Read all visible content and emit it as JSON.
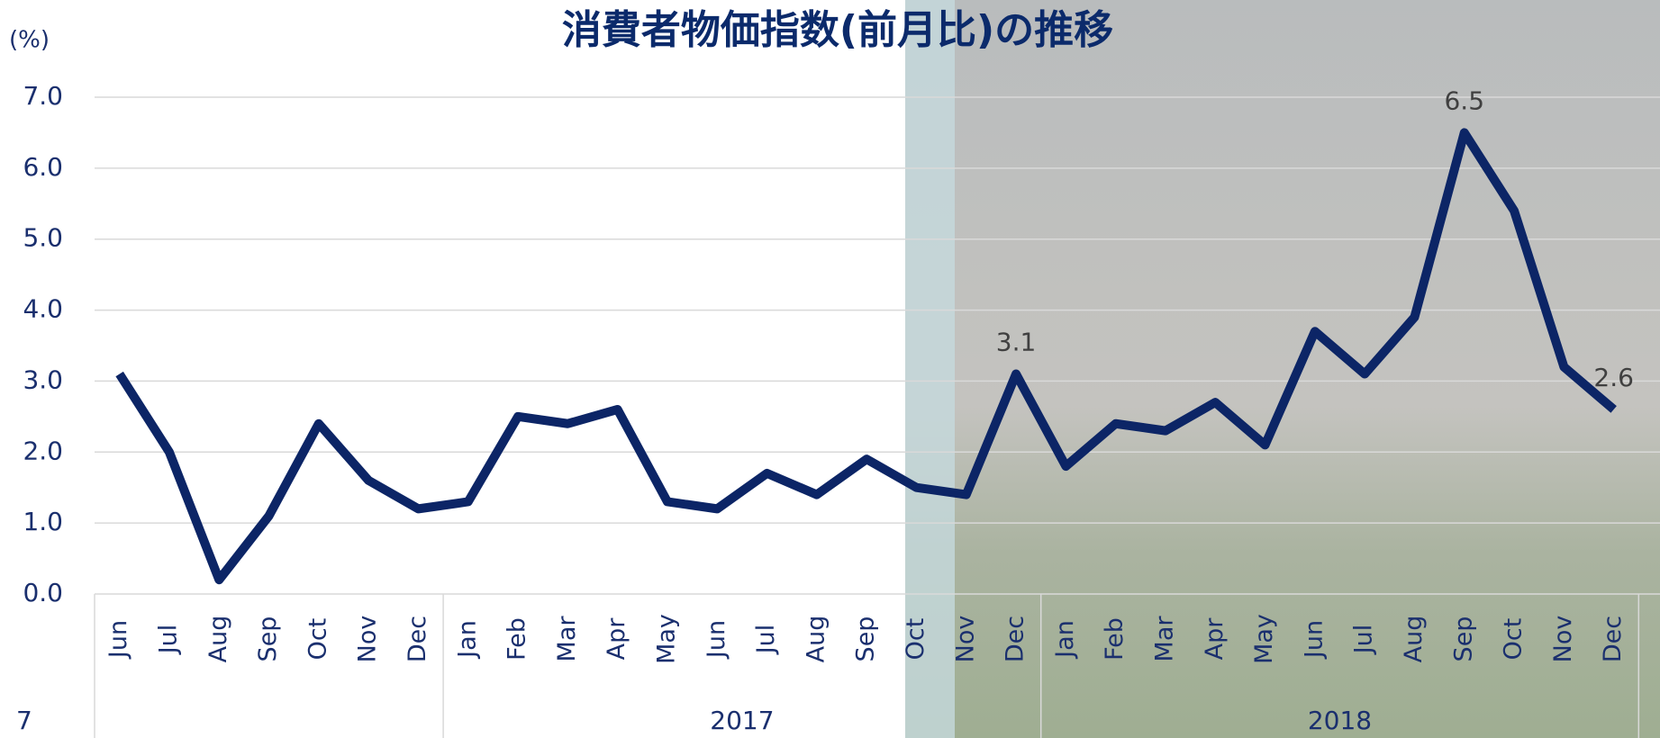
{
  "chart_data": {
    "type": "line",
    "title": "消費者物価指数(前月比)の推移",
    "y_label": "(%)",
    "page_number": "7",
    "categories": [
      "Jun",
      "Jul",
      "Aug",
      "Sep",
      "Oct",
      "Nov",
      "Dec",
      "Jan",
      "Feb",
      "Mar",
      "Apr",
      "May",
      "Jun",
      "Jul",
      "Aug",
      "Sep",
      "Oct",
      "Nov",
      "Dec",
      "Jan",
      "Feb",
      "Mar",
      "Apr",
      "May",
      "Jun",
      "Jul",
      "Aug",
      "Sep",
      "Oct",
      "Nov",
      "Dec"
    ],
    "groups": [
      {
        "label": null,
        "count": 7
      },
      {
        "label": "2017",
        "count": 12
      },
      {
        "label": "2018",
        "count": 12
      }
    ],
    "series": [
      {
        "name": "消費者物価指数",
        "color": "#0c2566",
        "values": [
          3.1,
          2.0,
          0.2,
          1.1,
          2.4,
          1.6,
          1.2,
          1.3,
          2.5,
          2.4,
          2.6,
          1.3,
          1.2,
          1.7,
          1.4,
          1.9,
          1.5,
          1.4,
          3.1,
          1.8,
          2.4,
          2.3,
          2.7,
          2.1,
          3.7,
          3.1,
          3.9,
          6.5,
          5.4,
          3.2,
          2.6
        ],
        "value_labels": [
          null,
          null,
          null,
          null,
          null,
          null,
          null,
          null,
          null,
          null,
          null,
          null,
          null,
          null,
          null,
          null,
          null,
          null,
          "3.1",
          null,
          null,
          null,
          null,
          null,
          null,
          null,
          null,
          "6.5",
          null,
          null,
          "2.6"
        ]
      }
    ],
    "ylim": [
      0,
      7
    ],
    "yticks": [
      {
        "value": 0,
        "label": "0.0"
      },
      {
        "value": 1,
        "label": "1.0"
      },
      {
        "value": 2,
        "label": "2.0"
      },
      {
        "value": 3,
        "label": "3.0"
      },
      {
        "value": 4,
        "label": "4.0"
      },
      {
        "value": 5,
        "label": "5.0"
      },
      {
        "value": 6,
        "label": "6.0"
      },
      {
        "value": 7,
        "label": "7.0"
      }
    ],
    "grid": true
  }
}
